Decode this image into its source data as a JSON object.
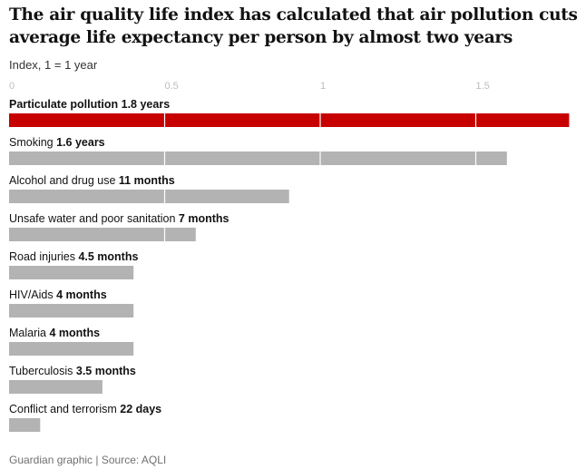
{
  "title": "The air quality life index has calculated that air pollution cuts average life expectancy per person by almost two years",
  "subtitle": "Index, 1 = 1 year",
  "footer": "Guardian graphic | Source: AQLI",
  "chart_data": {
    "type": "bar",
    "orientation": "horizontal",
    "xlim": [
      0,
      1.8
    ],
    "xticks": [
      0,
      0.5,
      1,
      1.5
    ],
    "xtick_labels": [
      "0",
      "0.5",
      "1",
      "1.5"
    ],
    "grid": true,
    "colors": {
      "highlight": "#c70000",
      "default": "#b3b3b3",
      "grid": "#ffffff"
    },
    "bars": [
      {
        "label": "Particulate pollution",
        "value_text": "1.8 years",
        "value": 1.8,
        "highlight": true
      },
      {
        "label": "Smoking",
        "value_text": "1.6 years",
        "value": 1.6,
        "highlight": false
      },
      {
        "label": "Alcohol and drug use",
        "value_text": "11 months",
        "value": 0.9,
        "highlight": false
      },
      {
        "label": "Unsafe water and poor sanitation",
        "value_text": "7 months",
        "value": 0.6,
        "highlight": false
      },
      {
        "label": "Road injuries",
        "value_text": "4.5 months",
        "value": 0.4,
        "highlight": false
      },
      {
        "label": "HIV/Aids",
        "value_text": "4 months",
        "value": 0.4,
        "highlight": false
      },
      {
        "label": "Malaria",
        "value_text": "4 months",
        "value": 0.4,
        "highlight": false
      },
      {
        "label": "Tuberculosis",
        "value_text": "3.5 months",
        "value": 0.3,
        "highlight": false
      },
      {
        "label": "Conflict and terrorism",
        "value_text": "22 days",
        "value": 0.1,
        "highlight": false
      }
    ]
  }
}
